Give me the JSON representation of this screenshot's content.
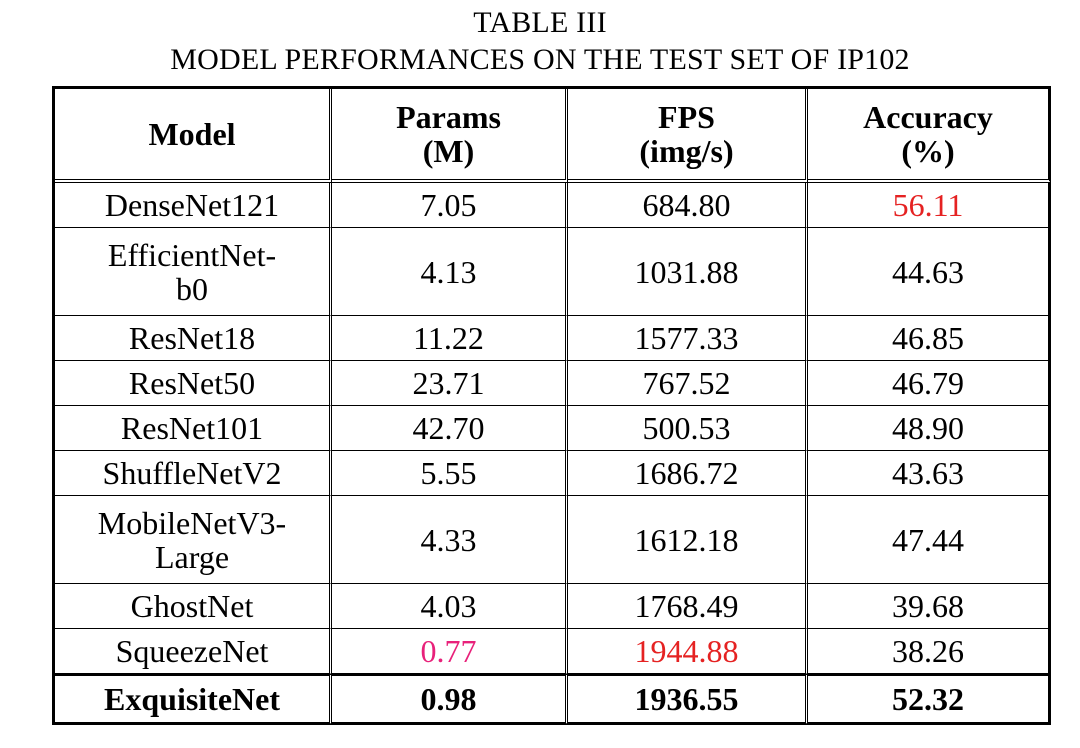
{
  "caption": {
    "line1": "TABLE III",
    "line2": "MODEL PERFORMANCES ON THE TEST SET OF IP102"
  },
  "table": {
    "headers": [
      {
        "line1": "Model",
        "line2": ""
      },
      {
        "line1": "Params",
        "line2": "(M)"
      },
      {
        "line1": "FPS",
        "line2": "(img/s)"
      },
      {
        "line1": "Accuracy",
        "line2": "(%)"
      }
    ],
    "rows": [
      {
        "model_line1": "DenseNet121",
        "model_line2": "",
        "params": "7.05",
        "fps": "684.80",
        "accuracy": "56.11"
      },
      {
        "model_line1": "EfficientNet-",
        "model_line2": "b0",
        "params": "4.13",
        "fps": "1031.88",
        "accuracy": "44.63"
      },
      {
        "model_line1": "ResNet18",
        "model_line2": "",
        "params": "11.22",
        "fps": "1577.33",
        "accuracy": "46.85"
      },
      {
        "model_line1": "ResNet50",
        "model_line2": "",
        "params": "23.71",
        "fps": "767.52",
        "accuracy": "46.79"
      },
      {
        "model_line1": "ResNet101",
        "model_line2": "",
        "params": "42.70",
        "fps": "500.53",
        "accuracy": "48.90"
      },
      {
        "model_line1": "ShuffleNetV2",
        "model_line2": "",
        "params": "5.55",
        "fps": "1686.72",
        "accuracy": "43.63"
      },
      {
        "model_line1": "MobileNetV3-",
        "model_line2": "Large",
        "params": "4.33",
        "fps": "1612.18",
        "accuracy": "47.44"
      },
      {
        "model_line1": "GhostNet",
        "model_line2": "",
        "params": "4.03",
        "fps": "1768.49",
        "accuracy": "39.68"
      },
      {
        "model_line1": "SqueezeNet",
        "model_line2": "",
        "params": "0.77",
        "fps": "1944.88",
        "accuracy": "38.26"
      },
      {
        "model_line1": "ExquisiteNet",
        "model_line2": "",
        "params": "0.98",
        "fps": "1936.55",
        "accuracy": "52.32"
      }
    ]
  },
  "highlight_colors": {
    "red": "#e52222",
    "pink": "#e8217a"
  }
}
